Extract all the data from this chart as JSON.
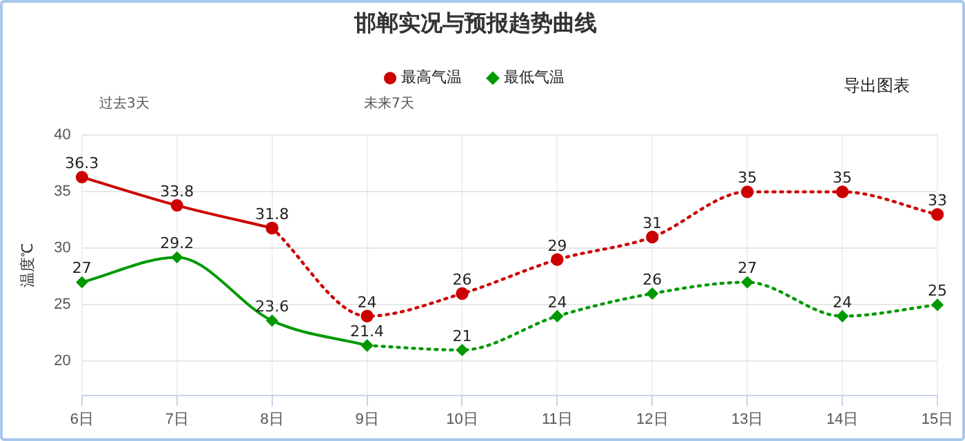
{
  "chart_data": {
    "type": "line",
    "title": "邯郸实况与预报趋势曲线",
    "ylabel": "温度℃",
    "categories": [
      "6日",
      "7日",
      "8日",
      "9日",
      "10日",
      "11日",
      "12日",
      "13日",
      "14日",
      "15日"
    ],
    "series": [
      {
        "name": "最高气温",
        "color": "#cc0000",
        "marker": "circle",
        "line_style": "solid",
        "values": [
          36.3,
          33.8,
          31.8,
          null,
          null,
          null,
          null,
          null,
          null,
          null
        ],
        "value_labels": [
          "36.3",
          "33.8",
          "31.8",
          null,
          null,
          null,
          null,
          null,
          null,
          null
        ]
      },
      {
        "color": "#cc0000",
        "marker": "circle",
        "line_style": "dotted",
        "values": [
          null,
          null,
          31.8,
          24,
          26,
          29,
          31,
          35,
          35,
          33
        ],
        "value_labels": [
          null,
          null,
          null,
          "24",
          "26",
          "29",
          "31",
          "35",
          "35",
          "33"
        ]
      },
      {
        "name": "最低气温",
        "color": "#009900",
        "marker": "diamond",
        "line_style": "solid",
        "values": [
          27,
          29.2,
          23.6,
          21.4,
          null,
          null,
          null,
          null,
          null,
          null
        ],
        "value_labels": [
          "27",
          "29.2",
          "23.6",
          "21.4",
          null,
          null,
          null,
          null,
          null,
          null
        ]
      },
      {
        "color": "#009900",
        "marker": "diamond",
        "line_style": "dotted",
        "values": [
          null,
          null,
          null,
          21.4,
          21,
          24,
          26,
          27,
          24,
          25
        ],
        "value_labels": [
          null,
          null,
          null,
          null,
          "21",
          "24",
          "26",
          "27",
          "24",
          "25"
        ]
      }
    ],
    "ylim": [
      17,
      40
    ],
    "yticks": [
      20,
      25,
      30,
      35,
      40
    ],
    "grid": true,
    "legend": "top",
    "annotations": [
      "过去3天",
      "未来7天",
      "导出图表"
    ]
  }
}
